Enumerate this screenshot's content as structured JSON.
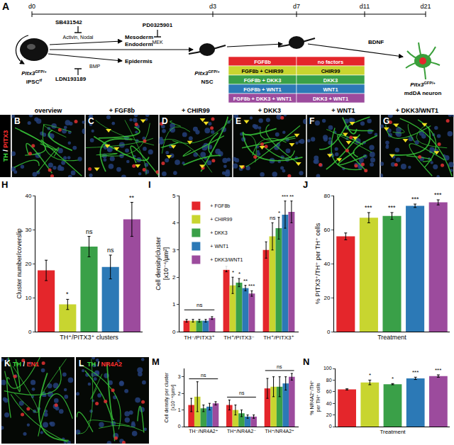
{
  "schematic": {
    "letter": "A",
    "days": [
      "d0",
      "d3",
      "d7",
      "d11",
      "d21"
    ],
    "ipsc": {
      "name": "Pitx3",
      "sup": "GFP/+",
      "line2": "iPSC",
      "line2_sup": "tf"
    },
    "inhibitors": [
      {
        "drug": "SB431542",
        "target": "Activin, Nodal",
        "fates": [
          "Mesoderm",
          "Endoderm"
        ]
      },
      {
        "drug": "LDN193189",
        "target": "BMP",
        "fates": [
          "Epidermis"
        ]
      },
      {
        "drug": "PD0325901",
        "target": "MEK"
      }
    ],
    "nsc": {
      "name": "Pitx3",
      "sup": "GFP/+",
      "line2": "NSC"
    },
    "neuron": {
      "name": "Pitx3",
      "sup": "GFP/+",
      "line2": "mdDA neuron"
    },
    "late_factor": "BDNF",
    "treatments": [
      {
        "early": "FGF8b",
        "late": "no factors",
        "color": "#e4262b"
      },
      {
        "early": "FGF8b + CHIR99",
        "late": "CHIR99",
        "color": "#c8d530"
      },
      {
        "early": "FGF8b + DKK3",
        "late": "DKK3",
        "color": "#3aa048"
      },
      {
        "early": "FGF8b + WNT1",
        "late": "WNT1",
        "color": "#2c79b6"
      },
      {
        "early": "FGF8b + DKK3 + WNT1",
        "late": "DKK3 + WNT1",
        "color": "#9c4b9d"
      }
    ]
  },
  "images": {
    "separator": "/",
    "top": {
      "stain": [
        {
          "text": "TH",
          "color": "#3ddc3d"
        },
        {
          "text": "PITX3",
          "color": "#ff3030"
        }
      ],
      "panels": [
        {
          "letter": "B",
          "label": "overview"
        },
        {
          "letter": "C",
          "label": "+ FGF8b"
        },
        {
          "letter": "D",
          "label": "+ CHIR99"
        },
        {
          "letter": "E",
          "label": "+ DKK3"
        },
        {
          "letter": "F",
          "label": "+ WNT1"
        },
        {
          "letter": "G",
          "label": "+ DKK3/WNT1"
        }
      ]
    },
    "bottom": [
      {
        "letter": "K",
        "stain": [
          {
            "text": "TH",
            "color": "#3ddc3d"
          },
          {
            "text": "EN1",
            "color": "#ff3030"
          }
        ]
      },
      {
        "letter": "L",
        "stain": [
          {
            "text": "TH",
            "color": "#3ddc3d"
          },
          {
            "text": "NR4A2",
            "color": "#ff3030"
          }
        ]
      }
    ]
  },
  "chart_data": [
    {
      "letter": "H",
      "type": "bar",
      "y_label": "Cluster number/coverslip",
      "x_label": "TH⁺/PITX3⁺ clusters",
      "categories": [
        null,
        null,
        null,
        null,
        null
      ],
      "values": [
        18,
        8,
        25,
        19,
        33
      ],
      "errors": [
        3,
        1.5,
        3,
        3.5,
        5
      ],
      "colors": [
        "#e4262b",
        "#c8d530",
        "#3aa048",
        "#2c79b6",
        "#9c4b9d"
      ],
      "significance": [
        null,
        "*",
        "ns",
        "ns",
        "**"
      ],
      "ylim": [
        0,
        40
      ],
      "yticks": [
        0,
        10,
        20,
        30,
        40
      ],
      "tick_labels": "y"
    },
    {
      "letter": "I",
      "type": "bar",
      "y_label": [
        "Cell density/cluster",
        "[x10⁻⁴/µm²]"
      ],
      "categories": [
        "TH⁻/PITX3⁺",
        "TH⁺/PITX3⁻",
        "TH⁺/PITX3⁺"
      ],
      "series": [
        {
          "name": "+ FGF8b",
          "color": "#e4262b",
          "values": [
            0.4,
            2.3,
            3.0
          ],
          "errors": [
            0.05,
            0.1,
            0.3
          ],
          "significance": [
            null,
            null,
            null
          ]
        },
        {
          "name": "+ CHIR99",
          "color": "#c8d530",
          "values": [
            0.4,
            1.7,
            3.5
          ],
          "errors": [
            0.05,
            0.3,
            0.5
          ],
          "significance": [
            null,
            "*",
            "ns"
          ]
        },
        {
          "name": "+ DKK3",
          "color": "#3aa048",
          "values": [
            0.4,
            1.8,
            3.8
          ],
          "errors": [
            0.05,
            0.15,
            0.4
          ],
          "significance": [
            null,
            "*",
            "*"
          ]
        },
        {
          "name": "+ WNT1",
          "color": "#2c79b6",
          "values": [
            0.4,
            1.6,
            4.3
          ],
          "errors": [
            0.05,
            0.1,
            0.5
          ],
          "significance": [
            null,
            "**",
            "***"
          ]
        },
        {
          "name": "+ DKK3/WNT1",
          "color": "#9c4b9d",
          "values": [
            0.5,
            1.4,
            4.4
          ],
          "errors": [
            0.05,
            0.1,
            0.4
          ],
          "significance": [
            null,
            "***",
            "**"
          ]
        }
      ],
      "group_labels": [
        "ns",
        null,
        null
      ],
      "ylim": [
        0,
        5
      ],
      "yticks": [
        0,
        1,
        2,
        3,
        4,
        5
      ],
      "legend": "top-left"
    },
    {
      "letter": "J",
      "type": "bar",
      "y_label": "% PITX3⁺/TH⁺ per TH⁺ cells",
      "x_label": "Treatment",
      "categories": [
        null,
        null,
        null,
        null,
        null
      ],
      "values": [
        56,
        67,
        68,
        74,
        76
      ],
      "errors": [
        2,
        3,
        2,
        1,
        1.5
      ],
      "colors": [
        "#e4262b",
        "#c8d530",
        "#3aa048",
        "#2c79b6",
        "#9c4b9d"
      ],
      "significance": [
        null,
        "***",
        "***",
        "***",
        "***"
      ],
      "ylim": [
        0,
        80
      ],
      "yticks": [
        0,
        20,
        40,
        60,
        80
      ],
      "tick_labels": "y"
    },
    {
      "letter": "M",
      "type": "bar",
      "y_label": [
        "Cell density per cluster",
        "[x10⁻⁴/µm²]"
      ],
      "categories": [
        "TH⁻/NR4A2⁺",
        "TH⁺/NR4A2⁻",
        "TH⁺/NR4A2⁺"
      ],
      "series": [
        {
          "color": "#e4262b",
          "values": [
            1.3,
            1.3,
            2.3
          ],
          "errors": [
            0.4,
            0.3,
            0.6
          ]
        },
        {
          "color": "#c8d530",
          "values": [
            1.8,
            1.0,
            2.4
          ],
          "errors": [
            0.9,
            0.3,
            0.6
          ]
        },
        {
          "color": "#3aa048",
          "values": [
            1.1,
            0.8,
            2.4
          ],
          "errors": [
            0.2,
            0.2,
            0.6
          ]
        },
        {
          "color": "#2c79b6",
          "values": [
            1.2,
            0.6,
            2.6
          ],
          "errors": [
            0.2,
            0.1,
            0.4
          ]
        },
        {
          "color": "#9c4b9d",
          "values": [
            1.4,
            0.6,
            3.0
          ],
          "errors": [
            0.1,
            0.1,
            0.2
          ]
        }
      ],
      "group_labels": [
        "ns",
        "ns",
        "ns"
      ],
      "ylim": [
        0,
        3.5
      ],
      "yticks": [
        0,
        1,
        2,
        3
      ]
    },
    {
      "letter": "N",
      "type": "bar",
      "y_label": [
        "% NR4A2⁺/TH⁺",
        "per TH⁺ cells"
      ],
      "x_label": "Treatment",
      "categories": [
        null,
        null,
        null,
        null,
        null
      ],
      "values": [
        64,
        76,
        73,
        83,
        87
      ],
      "errors": [
        1,
        4,
        1,
        2,
        2
      ],
      "colors": [
        "#e4262b",
        "#c8d530",
        "#3aa048",
        "#2c79b6",
        "#9c4b9d"
      ],
      "significance": [
        null,
        "*",
        "*",
        "***",
        "***"
      ],
      "ylim": [
        0,
        100
      ],
      "yticks": [
        0,
        20,
        40,
        60,
        80,
        100
      ],
      "tick_labels": "y"
    }
  ]
}
